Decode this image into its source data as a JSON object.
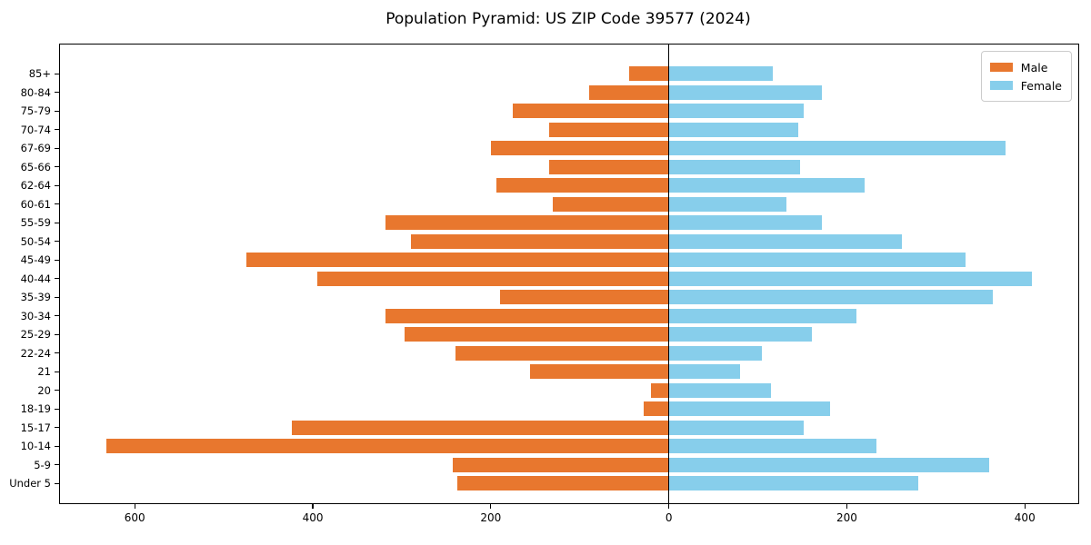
{
  "title": "Population Pyramid: US ZIP Code 39577 (2024)",
  "legend": {
    "male_label": "Male",
    "female_label": "Female",
    "position": "upper right"
  },
  "colors": {
    "male": "#e8772e",
    "female": "#87ceeb",
    "axis": "#000000",
    "zero_line": "#000000",
    "legend_border": "#cccccc",
    "background": "#ffffff"
  },
  "chart_data": {
    "type": "bar",
    "subtype": "population-pyramid-horizontal",
    "title": "Population Pyramid: US ZIP Code 39577 (2024)",
    "categories_top_to_bottom": [
      "85+",
      "80-84",
      "75-79",
      "70-74",
      "67-69",
      "65-66",
      "62-64",
      "60-61",
      "55-59",
      "50-54",
      "45-49",
      "40-44",
      "35-39",
      "30-34",
      "25-29",
      "22-24",
      "21",
      "20",
      "18-19",
      "15-17",
      "10-14",
      "5-9",
      "Under 5"
    ],
    "series": [
      {
        "name": "Male",
        "side": "left",
        "color": "#e8772e",
        "values": [
          45,
          90,
          175,
          134,
          200,
          134,
          194,
          130,
          318,
          290,
          475,
          395,
          190,
          318,
          297,
          240,
          156,
          20,
          28,
          424,
          632,
          243,
          238
        ]
      },
      {
        "name": "Female",
        "side": "right",
        "color": "#87ceeb",
        "values": [
          117,
          172,
          152,
          145,
          378,
          147,
          220,
          132,
          172,
          262,
          333,
          408,
          364,
          211,
          161,
          105,
          80,
          115,
          181,
          152,
          233,
          360,
          280
        ]
      }
    ],
    "xlabel": "",
    "ylabel": "",
    "xlim": [
      -684,
      460
    ],
    "x_ticks": [
      {
        "value": -600,
        "label": "600"
      },
      {
        "value": -400,
        "label": "400"
      },
      {
        "value": -200,
        "label": "200"
      },
      {
        "value": 0,
        "label": "0"
      },
      {
        "value": 200,
        "label": "200"
      },
      {
        "value": 400,
        "label": "400"
      }
    ],
    "grid": false,
    "zero_line": true,
    "legend_position": "upper right"
  }
}
